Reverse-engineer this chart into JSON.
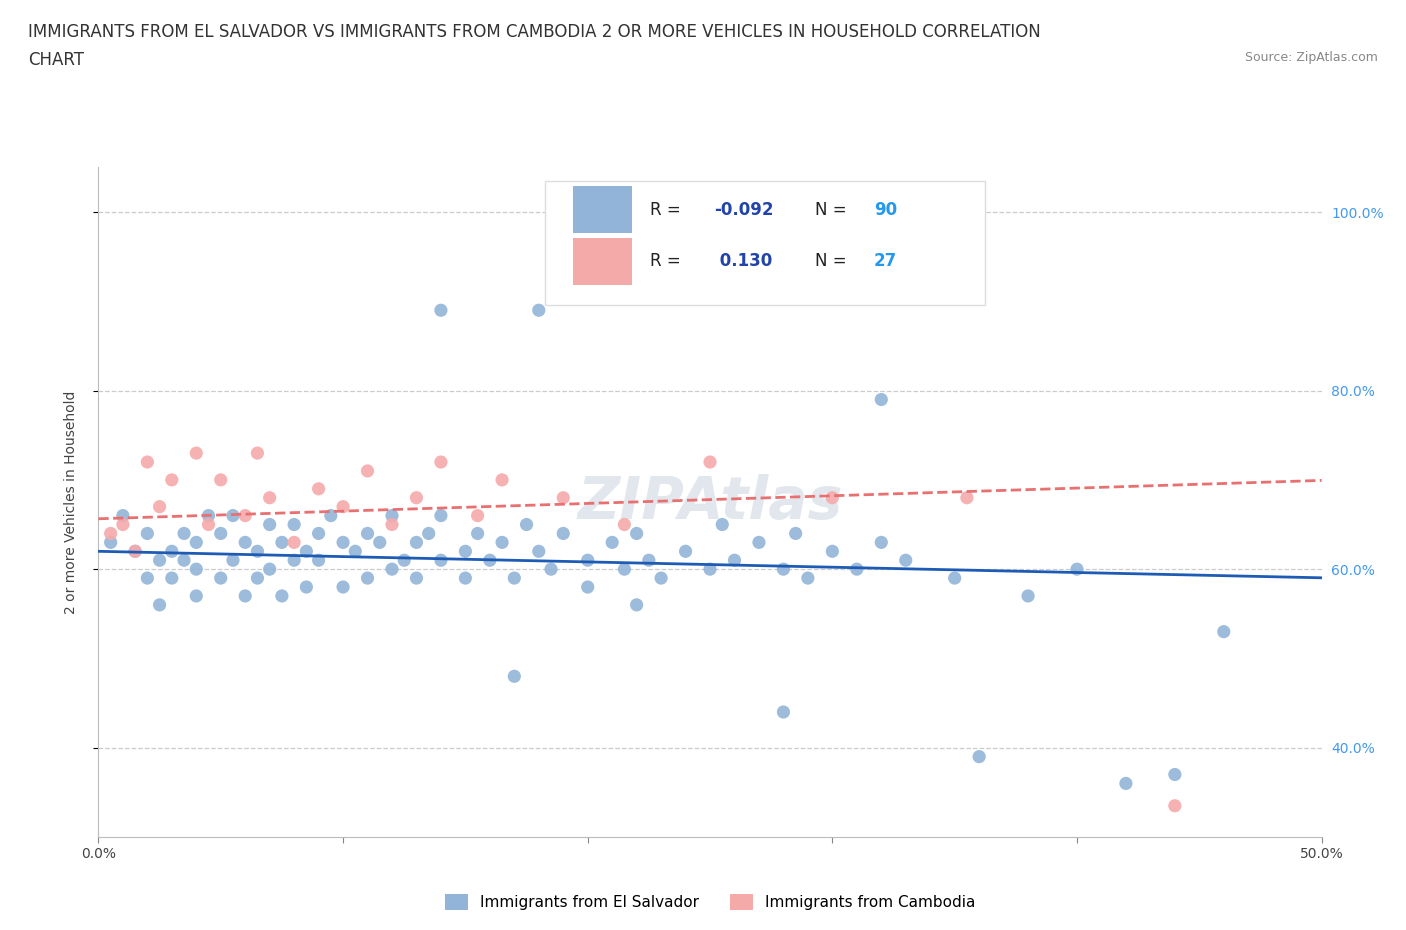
{
  "title_line1": "IMMIGRANTS FROM EL SALVADOR VS IMMIGRANTS FROM CAMBODIA 2 OR MORE VEHICLES IN HOUSEHOLD CORRELATION",
  "title_line2": "CHART",
  "source_text": "Source: ZipAtlas.com",
  "watermark": "ZIPAtlas",
  "ylabel": "2 or more Vehicles in Household",
  "xlim": [
    0.0,
    0.5
  ],
  "ylim": [
    0.3,
    1.05
  ],
  "ytick_vals": [
    0.4,
    0.6,
    0.8,
    1.0
  ],
  "ytick_labels": [
    "40.0%",
    "60.0%",
    "80.0%",
    "100.0%"
  ],
  "xtick_vals": [
    0.0,
    0.1,
    0.2,
    0.3,
    0.4,
    0.5
  ],
  "xtick_labels": [
    "0.0%",
    "",
    "",
    "",
    "",
    "50.0%"
  ],
  "el_salvador_R": -0.092,
  "el_salvador_N": 90,
  "cambodia_R": 0.13,
  "cambodia_N": 27,
  "el_salvador_color": "#92B4D8",
  "cambodia_color": "#F5AAAA",
  "el_salvador_line_color": "#1E5BB5",
  "cambodia_line_color": "#E87070",
  "background_color": "#FFFFFF",
  "grid_color": "#CCCCCC",
  "legend_R_color": "#2244AA",
  "legend_N_color": "#2299EE",
  "title_fontsize": 12,
  "axis_label_fontsize": 10,
  "tick_fontsize": 10,
  "legend_fontsize": 12,
  "watermark_fontsize": 42,
  "watermark_color": "#AABBCC",
  "watermark_alpha": 0.35,
  "el_salvador_x": [
    0.005,
    0.01,
    0.015,
    0.02,
    0.02,
    0.025,
    0.025,
    0.03,
    0.03,
    0.035,
    0.035,
    0.04,
    0.04,
    0.04,
    0.045,
    0.05,
    0.05,
    0.055,
    0.055,
    0.06,
    0.06,
    0.065,
    0.065,
    0.07,
    0.07,
    0.075,
    0.075,
    0.08,
    0.08,
    0.085,
    0.085,
    0.09,
    0.09,
    0.095,
    0.1,
    0.1,
    0.105,
    0.11,
    0.11,
    0.115,
    0.12,
    0.12,
    0.125,
    0.13,
    0.13,
    0.135,
    0.14,
    0.14,
    0.15,
    0.15,
    0.155,
    0.16,
    0.165,
    0.17,
    0.175,
    0.18,
    0.185,
    0.19,
    0.2,
    0.2,
    0.21,
    0.215,
    0.22,
    0.225,
    0.23,
    0.24,
    0.25,
    0.255,
    0.26,
    0.27,
    0.28,
    0.285,
    0.29,
    0.3,
    0.31,
    0.32,
    0.33,
    0.35,
    0.38,
    0.4,
    0.14,
    0.18,
    0.32,
    0.42,
    0.44,
    0.46,
    0.17,
    0.22,
    0.28,
    0.36
  ],
  "el_salvador_y": [
    0.63,
    0.66,
    0.62,
    0.59,
    0.64,
    0.61,
    0.56,
    0.62,
    0.59,
    0.64,
    0.61,
    0.63,
    0.57,
    0.6,
    0.66,
    0.59,
    0.64,
    0.61,
    0.66,
    0.63,
    0.57,
    0.62,
    0.59,
    0.65,
    0.6,
    0.63,
    0.57,
    0.61,
    0.65,
    0.62,
    0.58,
    0.64,
    0.61,
    0.66,
    0.63,
    0.58,
    0.62,
    0.64,
    0.59,
    0.63,
    0.6,
    0.66,
    0.61,
    0.63,
    0.59,
    0.64,
    0.61,
    0.66,
    0.62,
    0.59,
    0.64,
    0.61,
    0.63,
    0.59,
    0.65,
    0.62,
    0.6,
    0.64,
    0.61,
    0.58,
    0.63,
    0.6,
    0.64,
    0.61,
    0.59,
    0.62,
    0.6,
    0.65,
    0.61,
    0.63,
    0.6,
    0.64,
    0.59,
    0.62,
    0.6,
    0.63,
    0.61,
    0.59,
    0.57,
    0.6,
    0.89,
    0.89,
    0.79,
    0.36,
    0.37,
    0.53,
    0.48,
    0.56,
    0.44,
    0.39
  ],
  "cambodia_x": [
    0.005,
    0.01,
    0.015,
    0.02,
    0.025,
    0.03,
    0.04,
    0.045,
    0.05,
    0.06,
    0.065,
    0.07,
    0.08,
    0.09,
    0.1,
    0.11,
    0.12,
    0.13,
    0.14,
    0.155,
    0.165,
    0.19,
    0.215,
    0.25,
    0.3,
    0.355,
    0.44
  ],
  "cambodia_y": [
    0.64,
    0.65,
    0.62,
    0.72,
    0.67,
    0.7,
    0.73,
    0.65,
    0.7,
    0.66,
    0.73,
    0.68,
    0.63,
    0.69,
    0.67,
    0.71,
    0.65,
    0.68,
    0.72,
    0.66,
    0.7,
    0.68,
    0.65,
    0.72,
    0.68,
    0.68,
    0.335
  ],
  "legend_es_text": "R = -0.092  N = 90",
  "legend_cam_text": "R =  0.130  N = 27"
}
